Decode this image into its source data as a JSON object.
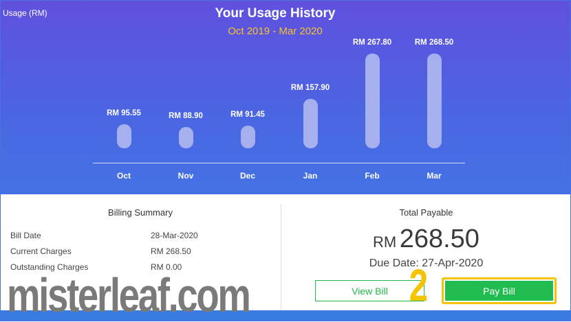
{
  "header": {
    "y_axis_label": "Usage (RM)",
    "title": "Your Usage History",
    "subtitle": "Oct 2019 - Mar 2020"
  },
  "chart_data": {
    "type": "bar",
    "categories": [
      "Oct",
      "Nov",
      "Dec",
      "Jan",
      "Feb",
      "Mar"
    ],
    "values": [
      95.55,
      88.9,
      91.45,
      157.9,
      267.8,
      268.5
    ],
    "data_labels": [
      "RM 95.55",
      "RM 88.90",
      "RM 91.45",
      "RM 157.90",
      "RM 267.80",
      "RM 268.50"
    ],
    "title": "Your Usage History",
    "subtitle": "Oct 2019 - Mar 2020",
    "ylabel": "Usage (RM)",
    "xlabel": "",
    "bar_color": "#a7b0ee"
  },
  "billing_summary": {
    "title": "Billing Summary",
    "rows": [
      {
        "label": "Bill Date",
        "value": "28-Mar-2020"
      },
      {
        "label": "Current Charges",
        "value": "RM 268.50"
      },
      {
        "label": "Outstanding Charges",
        "value": "RM 0.00"
      }
    ]
  },
  "payment": {
    "label": "Total Payable",
    "currency": "RM",
    "amount": "268.50",
    "due_date": "Due Date: 27-Apr-2020",
    "view_bill": "View Bill",
    "pay_bill": "Pay Bill"
  },
  "overlay": {
    "watermark": "misterleaf.com",
    "step_number": "2",
    "highlight_color": "#f5c400"
  },
  "colors": {
    "accent_green": "#21bc4f",
    "header_top": "#6050de",
    "header_bottom": "#4472e4",
    "subtitle": "#f7c325"
  }
}
